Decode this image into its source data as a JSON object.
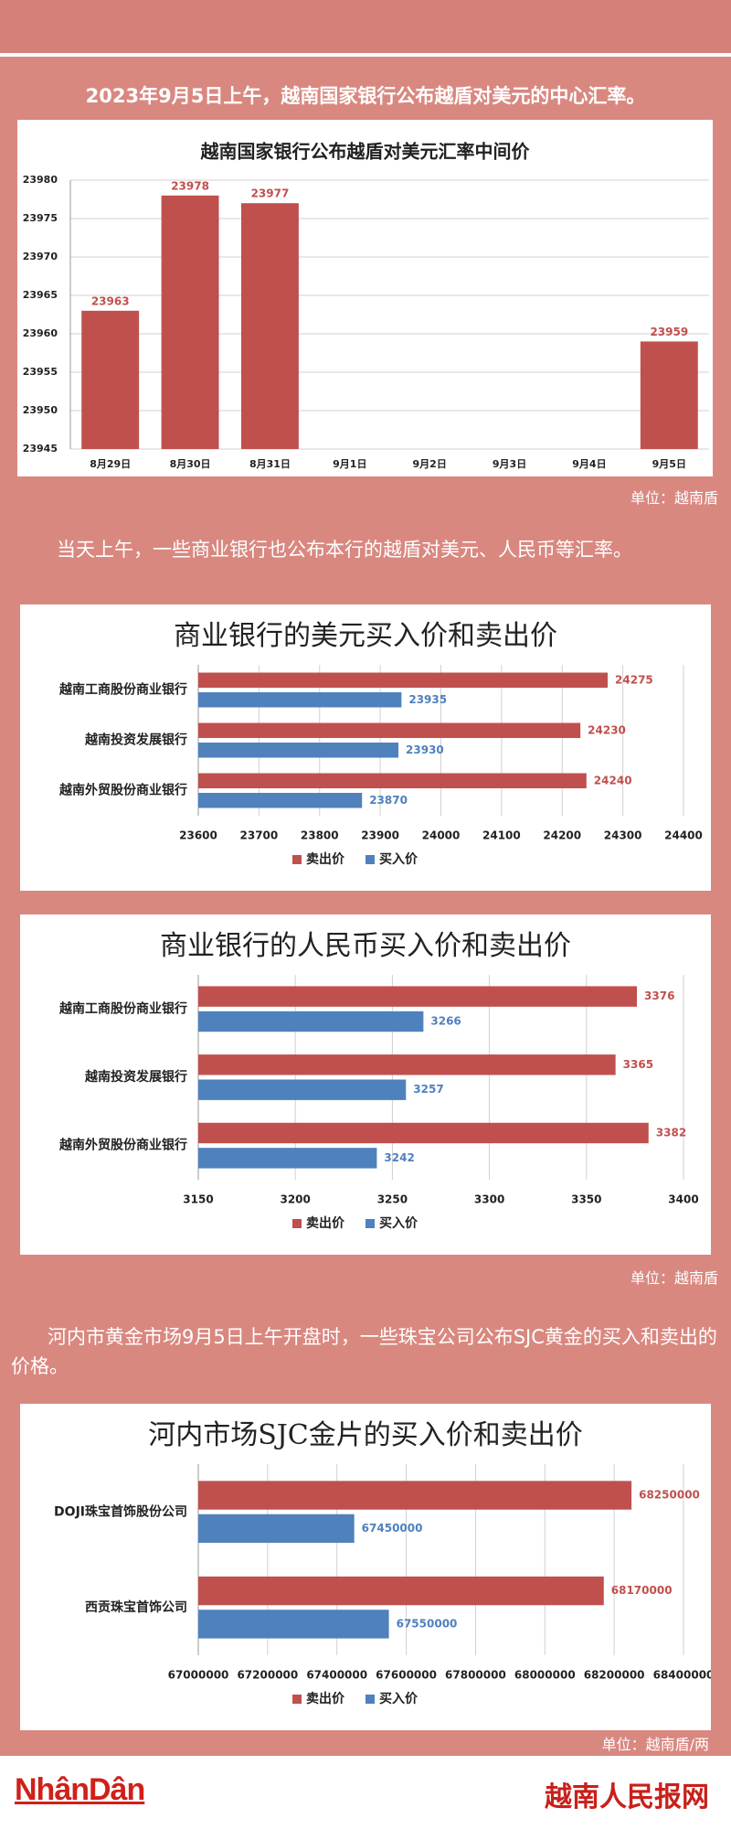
{
  "texts": {
    "intro": "2023年9月5日上午，越南国家银行公布越盾对美元的中心汇率。",
    "unit_1": "单位：越南盾",
    "paragraph_2": "当天上午，一些商业银行也公布本行的越盾对美元、人民币等汇率。",
    "unit_2": "单位：越南盾",
    "paragraph_3": "河内市黄金市场9月5日上午开盘时，一些珠宝公司公布SJC黄金的买入和卖出的价格。",
    "unit_3": "单位：越南盾/两",
    "logo": "NhânDân",
    "site": "越南人民报网"
  },
  "chart_data": [
    {
      "type": "bar",
      "title": "越南国家银行公布越盾对美元汇率中间价",
      "categories": [
        "8月29日",
        "8月30日",
        "8月31日",
        "9月1日",
        "9月2日",
        "9月3日",
        "9月4日",
        "9月5日"
      ],
      "values": [
        23963,
        23978,
        23977,
        null,
        null,
        null,
        null,
        23959
      ],
      "color": "#c0504d",
      "ylim": [
        23945,
        23980
      ],
      "yticks": [
        23945,
        23950,
        23955,
        23960,
        23965,
        23970,
        23975,
        23980
      ],
      "grid": true
    },
    {
      "type": "hbar",
      "title": "商业银行的美元买入价和卖出价",
      "categories": [
        "越南工商股份商业银行",
        "越南投资发展银行",
        "越南外贸股份商业银行"
      ],
      "series": [
        {
          "name": "卖出价",
          "color": "#c0504d",
          "values": [
            24275,
            24230,
            24240
          ]
        },
        {
          "name": "买入价",
          "color": "#4f81bd",
          "values": [
            23935,
            23930,
            23870
          ]
        }
      ],
      "xlim": [
        23600,
        24400
      ],
      "xticks": [
        23600,
        23700,
        23800,
        23900,
        24000,
        24100,
        24200,
        24300,
        24400
      ],
      "grid": true,
      "legend": "bottom"
    },
    {
      "type": "hbar",
      "title": "商业银行的人民币买入价和卖出价",
      "categories": [
        "越南工商股份商业银行",
        "越南投资发展银行",
        "越南外贸股份商业银行"
      ],
      "series": [
        {
          "name": "卖出价",
          "color": "#c0504d",
          "values": [
            3376,
            3365,
            3382
          ]
        },
        {
          "name": "买入价",
          "color": "#4f81bd",
          "values": [
            3266,
            3257,
            3242
          ]
        }
      ],
      "xlim": [
        3150,
        3400
      ],
      "xticks": [
        3150,
        3200,
        3250,
        3300,
        3350,
        3400
      ],
      "grid": true,
      "legend": "bottom"
    },
    {
      "type": "hbar",
      "title": "河内市场SJC金片的买入价和卖出价",
      "categories": [
        "DOJI珠宝首饰股份公司",
        "西贡珠宝首饰公司"
      ],
      "series": [
        {
          "name": "卖出价",
          "color": "#c0504d",
          "values": [
            68250000,
            68170000
          ]
        },
        {
          "name": "买入价",
          "color": "#4f81bd",
          "values": [
            67450000,
            67550000
          ]
        }
      ],
      "xlim": [
        67000000,
        68400000
      ],
      "xticks": [
        67000000,
        67200000,
        67400000,
        67600000,
        67800000,
        68000000,
        68200000,
        68400000
      ],
      "grid": true,
      "legend": "bottom"
    }
  ]
}
